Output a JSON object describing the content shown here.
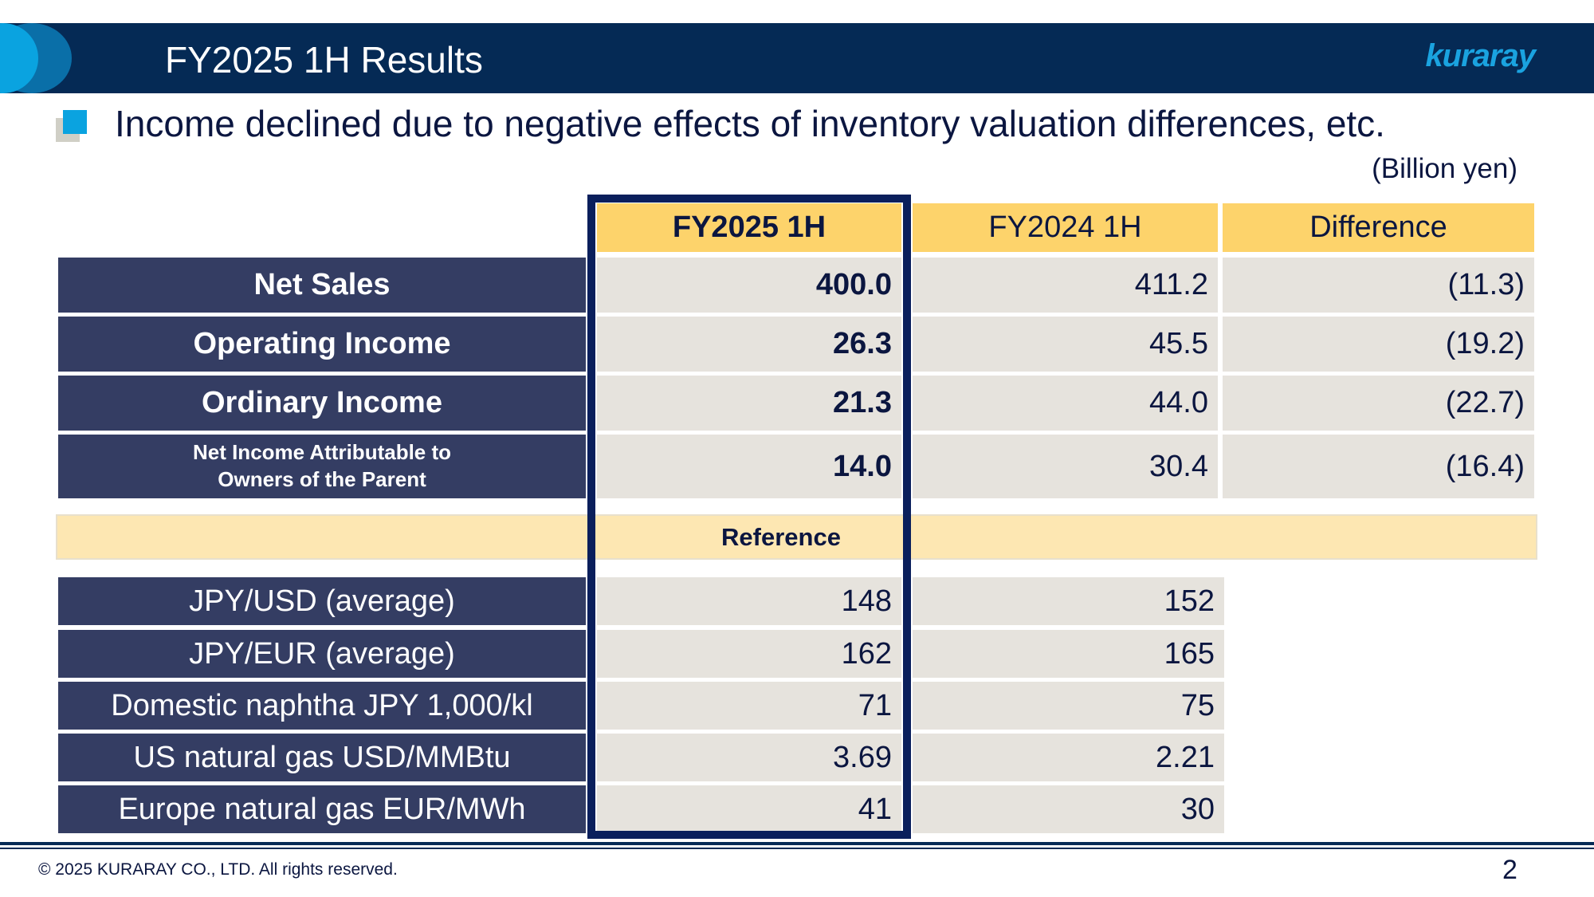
{
  "header": {
    "title": "FY2025 1H Results",
    "logo": "kuraray"
  },
  "bullet": "Income declined due to negative effects of inventory valuation differences, etc.",
  "unit": "(Billion yen)",
  "table": {
    "columns": [
      "FY2025 1H",
      "FY2024 1H",
      "Difference"
    ],
    "rows": [
      {
        "label": "Net Sales",
        "fy2025": "400.0",
        "fy2024": "411.2",
        "diff": "(11.3)"
      },
      {
        "label": "Operating Income",
        "fy2025": "26.3",
        "fy2024": "45.5",
        "diff": "(19.2)"
      },
      {
        "label": "Ordinary Income",
        "fy2025": "21.3",
        "fy2024": "44.0",
        "diff": "(22.7)"
      },
      {
        "label": "Net Income Attributable to\nOwners of the Parent",
        "fy2025": "14.0",
        "fy2024": "30.4",
        "diff": "(16.4)"
      }
    ],
    "reference_label": "Reference",
    "reference_rows": [
      {
        "label": "JPY/USD (average)",
        "fy2025": "148",
        "fy2024": "152"
      },
      {
        "label": "JPY/EUR (average)",
        "fy2025": "162",
        "fy2024": "165"
      },
      {
        "label": "Domestic naphtha JPY 1,000/kl",
        "fy2025": "71",
        "fy2024": "75"
      },
      {
        "label": "US natural gas USD/MMBtu",
        "fy2025": "3.69",
        "fy2024": "2.21"
      },
      {
        "label": "Europe natural gas EUR/MWh",
        "fy2025": "41",
        "fy2024": "30"
      }
    ]
  },
  "footer": {
    "copyright": "© 2025 KURARAY CO., LTD. All rights reserved.",
    "page": "2"
  },
  "colors": {
    "navy": "#052a55",
    "accent": "#0aa3e0",
    "header_yellow": "#fdd36b",
    "label_bg": "#343d63",
    "cell_bg": "#e6e3dd"
  }
}
